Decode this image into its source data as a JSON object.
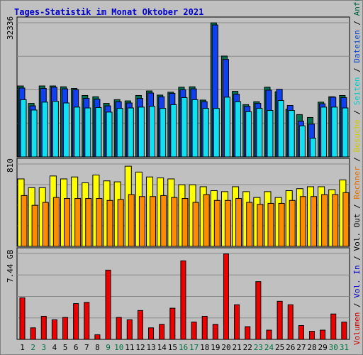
{
  "title": "Tages-Statistik im Monat Oktober 2021",
  "right_label_parts": [
    {
      "text": "Volumen",
      "color": "#cc0000"
    },
    {
      "text": " / ",
      "color": "#000000"
    },
    {
      "text": "Vol. In",
      "color": "#0000cc"
    },
    {
      "text": " / ",
      "color": "#000000"
    },
    {
      "text": "Vol. Out",
      "color": "#000000"
    },
    {
      "text": " / ",
      "color": "#000000"
    },
    {
      "text": "Rechner",
      "color": "#e07000"
    },
    {
      "text": " / ",
      "color": "#000000"
    },
    {
      "text": "Besuche",
      "color": "#cccc00"
    },
    {
      "text": " / ",
      "color": "#000000"
    },
    {
      "text": "Seiten",
      "color": "#00cccc"
    },
    {
      "text": " / ",
      "color": "#000000"
    },
    {
      "text": "Dateien",
      "color": "#0044cc"
    },
    {
      "text": " / ",
      "color": "#000000"
    },
    {
      "text": "Anfragen",
      "color": "#006644"
    }
  ],
  "colors": {
    "anfragen": "#007050",
    "dateien": "#1040f0",
    "seiten": "#10e0f0",
    "besuche": "#ffff00",
    "rechner": "#ff8c00",
    "volumen": "#ee0000",
    "weekday_label": "#000000",
    "weekend_label": "#007040"
  },
  "chart_data": [
    {
      "type": "bar",
      "title": "",
      "ymax_label": "32336",
      "ylim": [
        0,
        32336
      ],
      "categories": [
        "1",
        "2",
        "3",
        "4",
        "5",
        "6",
        "7",
        "8",
        "9",
        "10",
        "11",
        "12",
        "13",
        "14",
        "15",
        "16",
        "17",
        "18",
        "19",
        "20",
        "21",
        "22",
        "23",
        "24",
        "25",
        "26",
        "27",
        "28",
        "29",
        "30",
        "31"
      ],
      "weekend": [
        "2",
        "3",
        "9",
        "10",
        "16",
        "17",
        "23",
        "24",
        "30",
        "31"
      ],
      "series": [
        {
          "name": "Anfragen",
          "color": "#007050",
          "values": [
            17100,
            12900,
            17100,
            17100,
            16900,
            16500,
            14800,
            14500,
            12900,
            13800,
            13500,
            14800,
            15900,
            14900,
            15600,
            16800,
            16900,
            13700,
            32300,
            24300,
            15800,
            12600,
            13300,
            16800,
            15700,
            11500,
            10200,
            9500,
            13200,
            14500,
            14800
          ]
        },
        {
          "name": "Dateien",
          "color": "#1040f0",
          "values": [
            16600,
            12300,
            16500,
            16800,
            16400,
            16200,
            14100,
            13900,
            12300,
            13300,
            13000,
            14100,
            15400,
            14500,
            15300,
            16200,
            16400,
            13300,
            31800,
            23500,
            15100,
            12200,
            12900,
            16100,
            16300,
            12400,
            8600,
            7900,
            12800,
            14400,
            14300
          ]
        },
        {
          "name": "Seiten",
          "color": "#10e0f0",
          "values": [
            13800,
            11300,
            13200,
            13400,
            13000,
            12000,
            11800,
            11900,
            10800,
            11700,
            11800,
            12000,
            12200,
            11700,
            12600,
            14300,
            13800,
            11700,
            11700,
            14400,
            13300,
            10900,
            11700,
            11200,
            13600,
            11200,
            7500,
            4500,
            12000,
            12000,
            11800
          ]
        }
      ]
    },
    {
      "type": "bar",
      "title": "",
      "ymax_label": "810",
      "ylim": [
        0,
        810
      ],
      "categories": [
        "1",
        "2",
        "3",
        "4",
        "5",
        "6",
        "7",
        "8",
        "9",
        "10",
        "11",
        "12",
        "13",
        "14",
        "15",
        "16",
        "17",
        "18",
        "19",
        "20",
        "21",
        "22",
        "23",
        "24",
        "25",
        "26",
        "27",
        "28",
        "29",
        "30",
        "31"
      ],
      "series": [
        {
          "name": "Besuche",
          "color": "#ffff00",
          "values": [
            690,
            600,
            600,
            720,
            690,
            710,
            650,
            730,
            670,
            660,
            820,
            760,
            710,
            700,
            690,
            630,
            630,
            610,
            570,
            560,
            610,
            560,
            500,
            560,
            500,
            570,
            590,
            610,
            610,
            580,
            680
          ]
        },
        {
          "name": "Rechner",
          "color": "#ff8c00",
          "values": [
            520,
            420,
            450,
            500,
            490,
            490,
            490,
            490,
            470,
            480,
            530,
            510,
            510,
            520,
            500,
            490,
            450,
            530,
            470,
            470,
            490,
            450,
            430,
            440,
            440,
            470,
            510,
            510,
            530,
            530,
            550
          ]
        }
      ]
    },
    {
      "type": "bar",
      "title": "",
      "ymax_label": "7.44 GB",
      "ylim": [
        0,
        7.44
      ],
      "categories": [
        "1",
        "2",
        "3",
        "4",
        "5",
        "6",
        "7",
        "8",
        "9",
        "10",
        "11",
        "12",
        "13",
        "14",
        "15",
        "16",
        "17",
        "18",
        "19",
        "20",
        "21",
        "22",
        "23",
        "24",
        "25",
        "26",
        "27",
        "28",
        "29",
        "30",
        "31"
      ],
      "series": [
        {
          "name": "Volumen",
          "color": "#ee0000",
          "values": [
            3.6,
            1.0,
            2.0,
            1.7,
            1.9,
            3.1,
            3.2,
            0.4,
            6.0,
            1.9,
            1.7,
            2.5,
            1.0,
            1.3,
            2.7,
            6.8,
            1.5,
            2.0,
            1.3,
            7.4,
            3.0,
            1.1,
            5.0,
            0.8,
            3.3,
            3.0,
            1.2,
            0.7,
            0.8,
            2.2,
            1.5
          ]
        }
      ]
    }
  ]
}
